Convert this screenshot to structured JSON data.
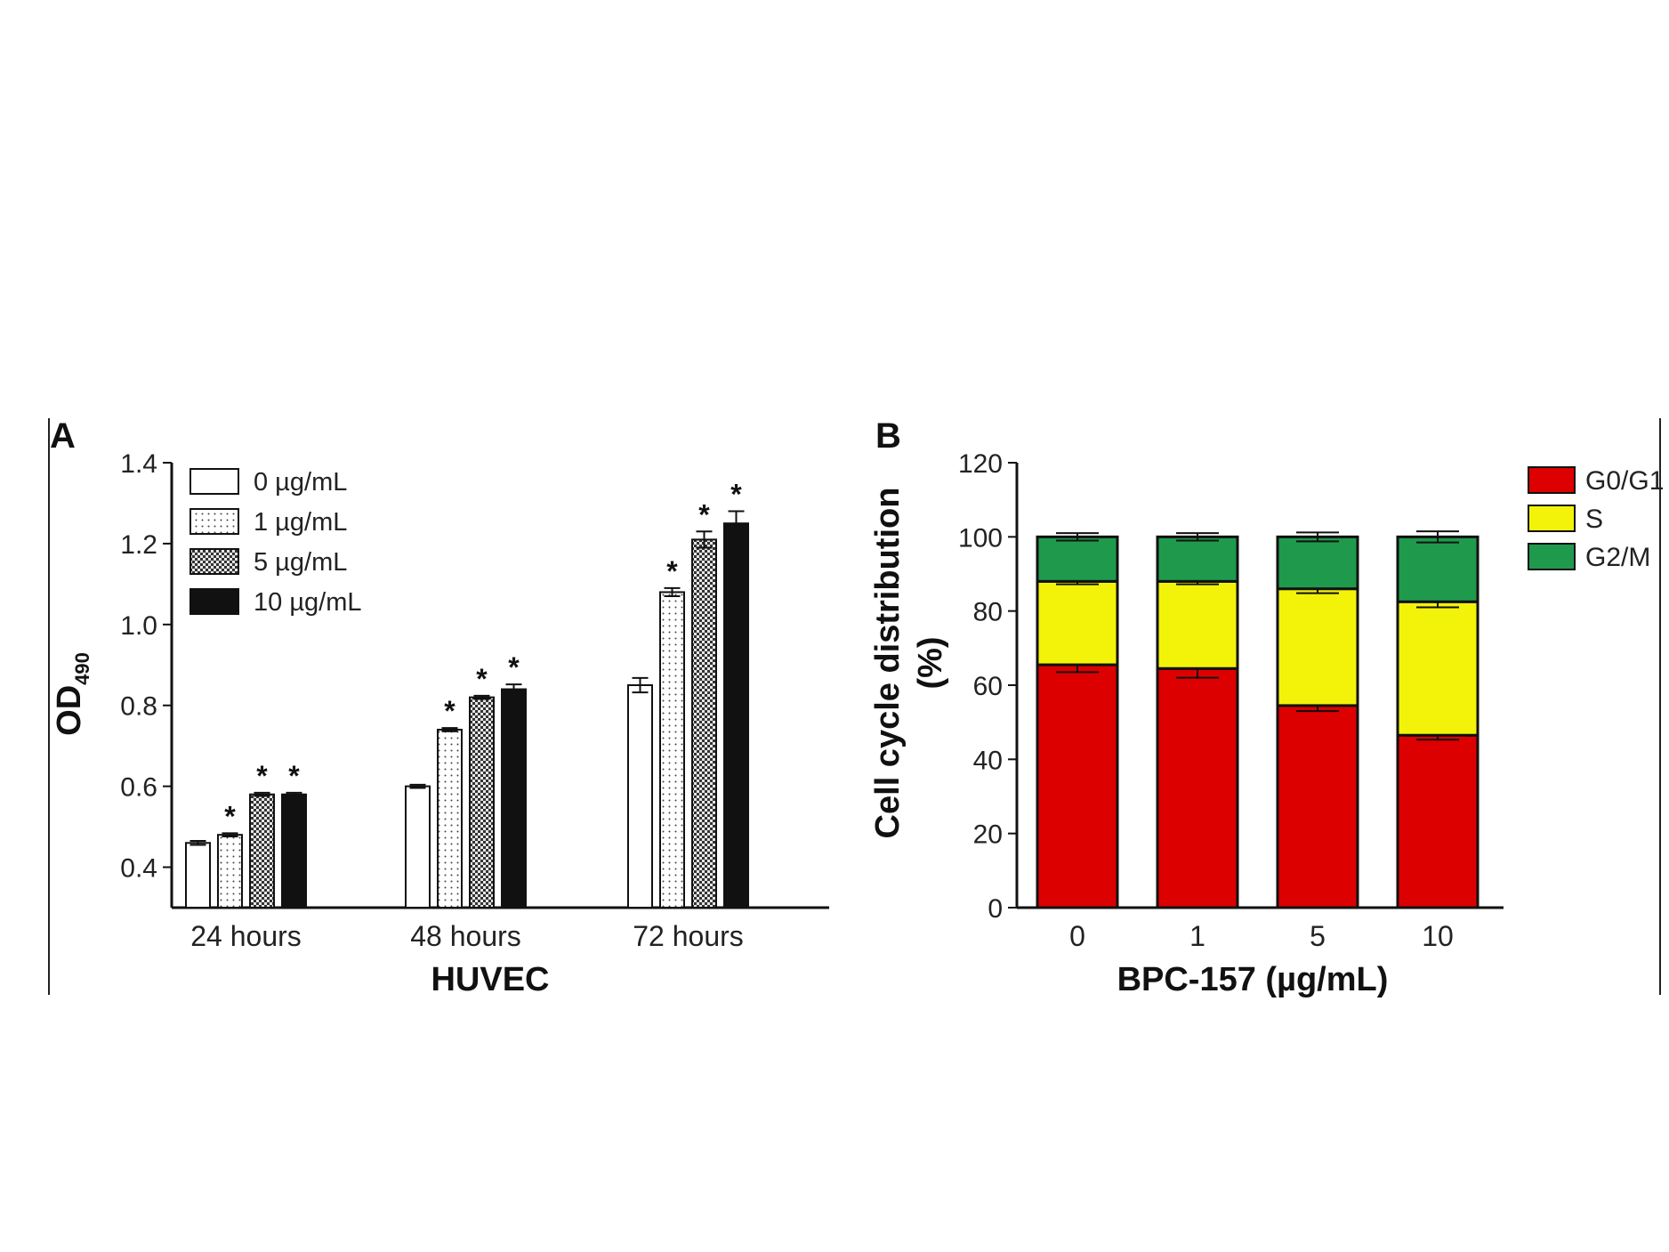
{
  "colors": {
    "axis": "#111111",
    "bar_outline": "#111111",
    "hatch": "#555555",
    "black_bar": "#111111",
    "g0g1": "#dd0000",
    "s": "#f3f30a",
    "g2m": "#1f9a4d"
  },
  "chart_data": [
    {
      "type": "bar",
      "panel_label": "A",
      "title": "",
      "xlabel": "HUVEC",
      "ylabel": "OD",
      "ylabel_subscript": "490",
      "ylim": [
        0.3,
        1.4
      ],
      "yticks": [
        "0.4",
        "0.6",
        "0.8",
        "1.0",
        "1.2",
        "1.4"
      ],
      "categories": [
        "24 hours",
        "48 hours",
        "72 hours"
      ],
      "legend_position": "top-left",
      "grid": false,
      "significance_marker": "*",
      "series": [
        {
          "name": "0 µg/mL",
          "fill": "white",
          "values": [
            0.46,
            0.6,
            0.85
          ],
          "errors": [
            0.005,
            0.004,
            0.018
          ],
          "significant": [
            false,
            false,
            false
          ]
        },
        {
          "name": "1 µg/mL",
          "fill": "dots",
          "values": [
            0.48,
            0.74,
            1.08
          ],
          "errors": [
            0.004,
            0.004,
            0.01
          ],
          "significant": [
            true,
            true,
            true
          ]
        },
        {
          "name": "5 µg/mL",
          "fill": "checker",
          "values": [
            0.58,
            0.82,
            1.21
          ],
          "errors": [
            0.004,
            0.004,
            0.02
          ],
          "significant": [
            true,
            true,
            true
          ]
        },
        {
          "name": "10 µg/mL",
          "fill": "black",
          "values": [
            0.58,
            0.84,
            1.25
          ],
          "errors": [
            0.004,
            0.012,
            0.03
          ],
          "significant": [
            true,
            true,
            true
          ]
        }
      ]
    },
    {
      "type": "bar",
      "stacked": true,
      "panel_label": "B",
      "title": "",
      "xlabel": "BPC-157 (µg/mL)",
      "ylabel_line1": "Cell cycle distribution",
      "ylabel_line2": "(%)",
      "ylim": [
        0,
        120
      ],
      "yticks": [
        "0",
        "20",
        "40",
        "60",
        "80",
        "100",
        "120"
      ],
      "categories": [
        "0",
        "1",
        "5",
        "10"
      ],
      "legend_position": "right",
      "grid": false,
      "series": [
        {
          "name": "G0/G1",
          "values": [
            65.5,
            64.5,
            54.5,
            46.5
          ],
          "errors": [
            2.0,
            2.5,
            1.5,
            1.2
          ]
        },
        {
          "name": "S",
          "values": [
            22.5,
            23.5,
            31.5,
            36.0
          ],
          "errors": [
            0.8,
            0.8,
            1.2,
            1.5
          ]
        },
        {
          "name": "G2/M",
          "values": [
            12.0,
            12.0,
            14.0,
            17.5
          ],
          "errors": [
            1.0,
            1.0,
            1.2,
            1.5
          ]
        }
      ]
    }
  ]
}
